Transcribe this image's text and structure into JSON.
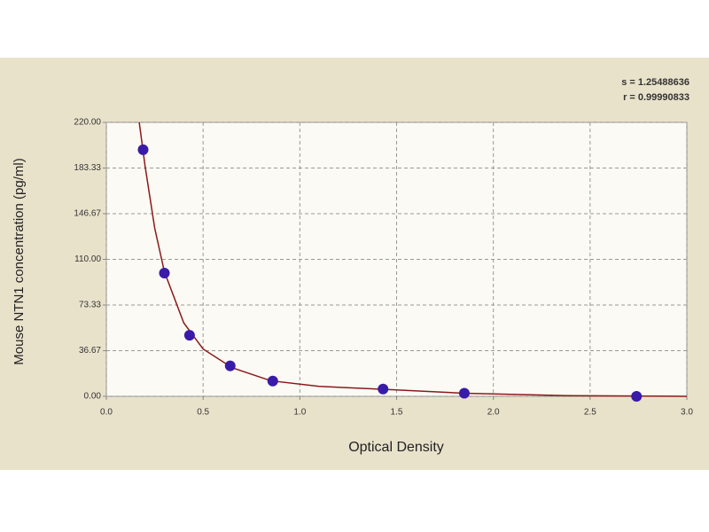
{
  "chart_data": {
    "type": "scatter",
    "x_label": "Optical Density",
    "y_label": "Mouse NTN1 concentration (pg/ml)",
    "annotations": [
      "s = 1.25488636",
      "r = 0.99990833"
    ],
    "xlim": [
      0,
      3
    ],
    "ylim": [
      0,
      220
    ],
    "xticks": [
      {
        "value": 0,
        "label": "0.0"
      },
      {
        "value": 0.5,
        "label": "0.5"
      },
      {
        "value": 1,
        "label": "1.0"
      },
      {
        "value": 1.5,
        "label": "1.5"
      },
      {
        "value": 2,
        "label": "2.0"
      },
      {
        "value": 2.5,
        "label": "2.5"
      },
      {
        "value": 3,
        "label": "3.0"
      }
    ],
    "yticks": [
      {
        "value": 0,
        "label": "0.00"
      },
      {
        "value": 36.67,
        "label": "36.67"
      },
      {
        "value": 73.33,
        "label": "73.33"
      },
      {
        "value": 110,
        "label": "110.00"
      },
      {
        "value": 146.67,
        "label": "146.67"
      },
      {
        "value": 183.33,
        "label": "183.33"
      },
      {
        "value": 220,
        "label": "220.00"
      }
    ],
    "grid": true,
    "series": [
      {
        "mode": "line",
        "color": "#8b1a1a",
        "x": [
          0.17,
          0.2,
          0.25,
          0.3,
          0.4,
          0.5,
          0.65,
          0.85,
          1.1,
          1.45,
          1.85,
          2.4,
          3.0
        ],
        "values": [
          220,
          185,
          135,
          100,
          59,
          38,
          23,
          12.5,
          8,
          5.5,
          2.5,
          0.5,
          0
        ]
      },
      {
        "mode": "markers",
        "color": "#3a1aa8",
        "x": [
          0.19,
          0.3,
          0.43,
          0.64,
          0.86,
          1.43,
          1.85,
          2.74
        ],
        "values": [
          198,
          99,
          49,
          24.5,
          12.3,
          5.9,
          2.5,
          0
        ]
      }
    ]
  }
}
